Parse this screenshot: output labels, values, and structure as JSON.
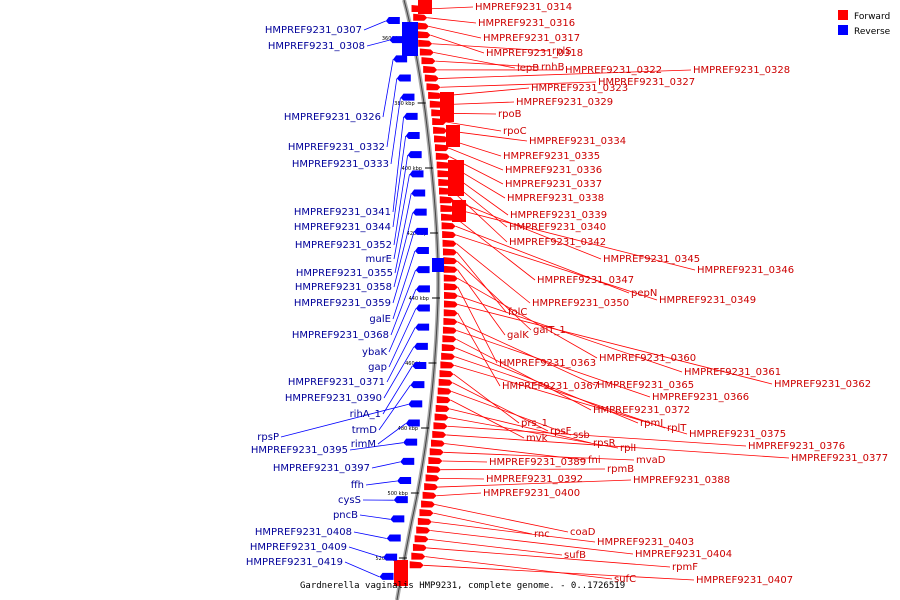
{
  "legend": {
    "forward": "Forward",
    "reverse": "Reverse",
    "forward_color": "#ff0000",
    "reverse_color": "#0000ff"
  },
  "caption": "Gardnerella vaginalis HMP9231, complete genome. - 0..1726519",
  "backbone_ticks": [
    "360 kbp",
    "380 kbp",
    "400 kbp",
    "420 kbp",
    "440 kbp",
    "460 kbp",
    "480 kbp",
    "500 kbp",
    "520 kbp"
  ],
  "forward_genes": [
    "HMPREF9231_0314",
    "HMPREF9231_0316",
    "HMPREF9231_0317",
    "HMPREF9231_0318",
    "rplS",
    "lepB",
    "rnhB",
    "HMPREF9231_0322",
    "HMPREF9231_0328",
    "HMPREF9231_0327",
    "HMPREF9231_0323",
    "HMPREF9231_0329",
    "rpoB",
    "rpoC",
    "HMPREF9231_0334",
    "HMPREF9231_0335",
    "HMPREF9231_0336",
    "HMPREF9231_0337",
    "HMPREF9231_0338",
    "HMPREF9231_0339",
    "HMPREF9231_0340",
    "HMPREF9231_0342",
    "HMPREF9231_0345",
    "HMPREF9231_0346",
    "HMPREF9231_0347",
    "pepN",
    "HMPREF9231_0349",
    "HMPREF9231_0350",
    "folC",
    "galT_1",
    "galK",
    "HMPREF9231_0360",
    "HMPREF9231_0363",
    "HMPREF9231_0361",
    "HMPREF9231_0362",
    "HMPREF9231_0367",
    "HMPREF9231_0365",
    "HMPREF9231_0366",
    "HMPREF9231_0372",
    "rpmI",
    "rplT",
    "HMPREF9231_0375",
    "prs_1",
    "rpsF",
    "ssb",
    "mvk",
    "rpsR",
    "rplI",
    "HMPREF9231_0376",
    "HMPREF9231_0377",
    "fni",
    "mvaD",
    "HMPREF9231_0389",
    "rpmB",
    "HMPREF9231_0392",
    "HMPREF9231_0388",
    "HMPREF9231_0400",
    "coaD",
    "rnc",
    "HMPREF9231_0403",
    "HMPREF9231_0404",
    "sufB",
    "rpmF",
    "sufC",
    "HMPREF9231_0407"
  ],
  "reverse_genes": [
    "HMPREF9231_0307",
    "HMPREF9231_0308",
    "HMPREF9231_0326",
    "HMPREF9231_0332",
    "HMPREF9231_0333",
    "HMPREF9231_0341",
    "HMPREF9231_0344",
    "HMPREF9231_0352",
    "murE",
    "HMPREF9231_0355",
    "HMPREF9231_0358",
    "HMPREF9231_0359",
    "galE",
    "HMPREF9231_0368",
    "ybaK",
    "gap",
    "HMPREF9231_0371",
    "HMPREF9231_0390",
    "rihA_1",
    "trmD",
    "rpsP",
    "rimM",
    "HMPREF9231_0395",
    "HMPREF9231_0397",
    "ffh",
    "cysS",
    "pncB",
    "HMPREF9231_0408",
    "HMPREF9231_0409",
    "HMPREF9231_0419"
  ]
}
